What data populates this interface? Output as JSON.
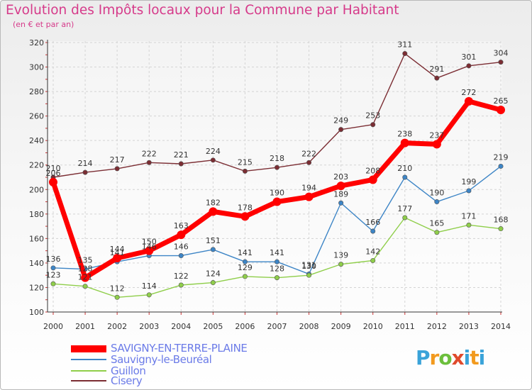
{
  "title": "Evolution des Impôts locaux pour la Commune par Habitant",
  "subtitle": "(en € et par an)",
  "logo_text": "Proxiti",
  "chart_data": {
    "type": "line",
    "title": "Evolution des Impôts locaux pour la Commune par Habitant",
    "subtitle": "(en € et par an)",
    "xlabel": "",
    "ylabel": "",
    "ylim": [
      100,
      320
    ],
    "yticks": [
      "100",
      "120",
      "140",
      "160",
      "180",
      "200",
      "220",
      "240",
      "260",
      "280",
      "300",
      "320"
    ],
    "x": [
      "2000",
      "2001",
      "2002",
      "2003",
      "2004",
      "2005",
      "2006",
      "2007",
      "2008",
      "2009",
      "2010",
      "2011",
      "2012",
      "2013",
      "2014"
    ],
    "grid": true,
    "legend_position": "bottom-left",
    "series": [
      {
        "name": "SAVIGNY-EN-TERRE-PLAINE",
        "color": "#ff0000",
        "values": [
          206,
          128,
          144,
          150,
          163,
          182,
          178,
          190,
          194,
          203,
          208,
          238,
          237,
          272,
          265
        ],
        "labels": [
          "206",
          "128",
          "144",
          "150",
          "163",
          "182",
          "178",
          "190",
          "194",
          "203",
          "208",
          "238",
          "237",
          "272",
          "265"
        ]
      },
      {
        "name": "Sauvigny-le-Beuréal",
        "color": "#3d85c6",
        "values": [
          136,
          135,
          141,
          146,
          146,
          151,
          141,
          141,
          131,
          189,
          166,
          210,
          190,
          199,
          219
        ],
        "labels": [
          "136",
          "135",
          "141",
          "146",
          "146",
          "151",
          "141",
          "141",
          "131",
          "189",
          "166",
          "210",
          "190",
          "199",
          "219"
        ]
      },
      {
        "name": "Guillon",
        "color": "#8fce4a",
        "values": [
          123,
          121,
          112,
          114,
          122,
          124,
          129,
          128,
          130,
          139,
          142,
          177,
          165,
          171,
          168
        ],
        "labels": [
          "123",
          "121",
          "112",
          "114",
          "122",
          "124",
          "129",
          "128",
          "130",
          "139",
          "142",
          "177",
          "165",
          "171",
          "168"
        ]
      },
      {
        "name": "Cisery",
        "color": "#7b2d33",
        "values": [
          210,
          214,
          217,
          222,
          221,
          224,
          215,
          218,
          222,
          249,
          253,
          311,
          291,
          301,
          304
        ],
        "labels": [
          "210",
          "214",
          "217",
          "222",
          "221",
          "224",
          "215",
          "218",
          "222",
          "249",
          "253",
          "311",
          "291",
          "301",
          "304"
        ]
      }
    ]
  }
}
